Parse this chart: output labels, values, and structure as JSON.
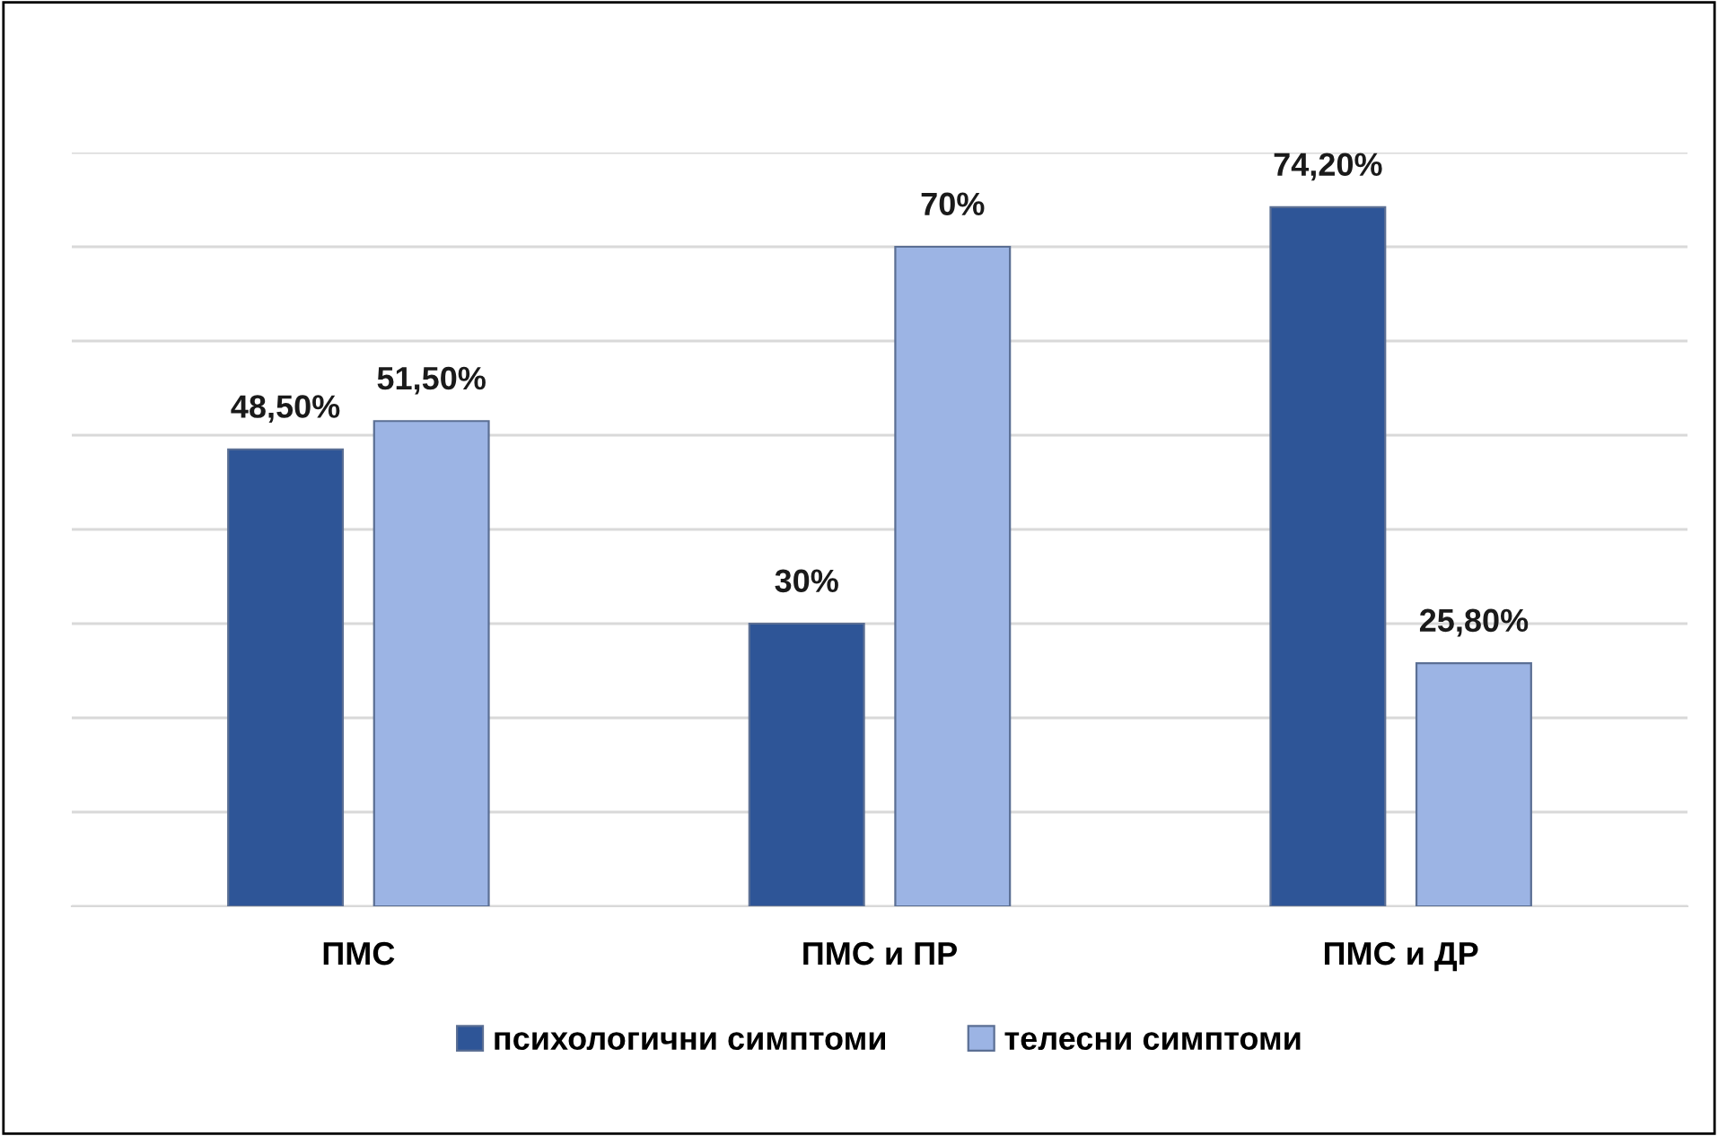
{
  "chart_data": {
    "type": "bar",
    "categories": [
      "ПМС",
      "ПМС и ПР",
      "ПМС и ДР"
    ],
    "series": [
      {
        "name": "психологични симптоми",
        "color": "#2e5597",
        "values": [
          48.5,
          30,
          74.2
        ],
        "value_labels": [
          "48,50%",
          "30%",
          "74,20%"
        ]
      },
      {
        "name": "телесни симптоми",
        "color": "#9cb4e4",
        "values": [
          51.5,
          70,
          25.8
        ],
        "value_labels": [
          "51,50%",
          "70%",
          "25,80%"
        ]
      }
    ],
    "ylim": [
      0,
      80
    ],
    "yticks": [
      {
        "value": 0,
        "label": null
      },
      {
        "value": 10,
        "label": null
      },
      {
        "value": 20,
        "label": null
      },
      {
        "value": 30,
        "label": null
      },
      {
        "value": 40,
        "label": null
      },
      {
        "value": 50,
        "label": null
      },
      {
        "value": 60,
        "label": null
      },
      {
        "value": 70,
        "label": null
      },
      {
        "value": 80,
        "label": null
      }
    ],
    "grid": "y",
    "legend": "bottom",
    "tick_labels": "x"
  }
}
